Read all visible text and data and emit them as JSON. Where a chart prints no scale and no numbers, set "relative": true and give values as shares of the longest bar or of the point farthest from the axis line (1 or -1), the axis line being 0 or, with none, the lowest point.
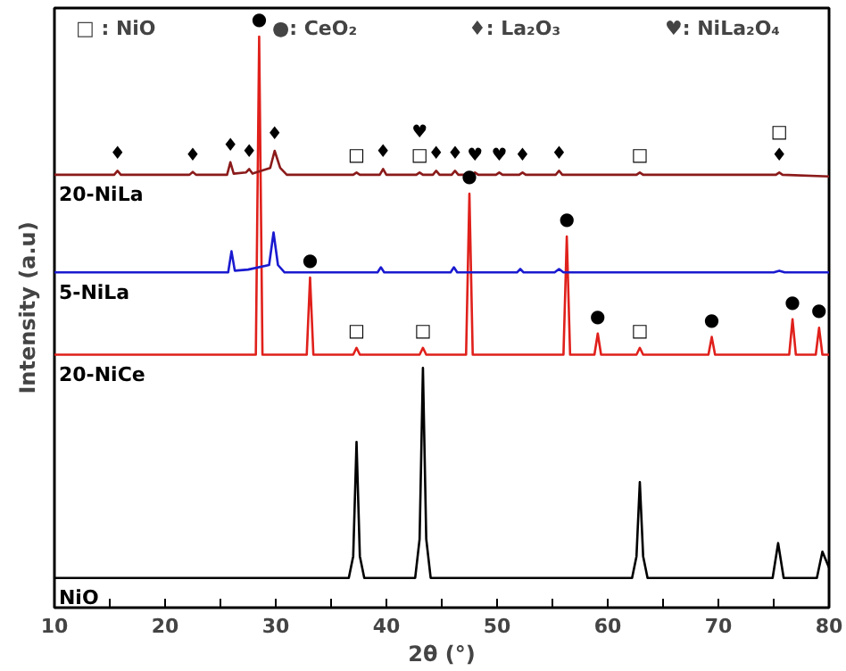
{
  "chart_data": {
    "type": "line",
    "relative": true,
    "xlabel": "2θ (°)",
    "ylabel": "Intensity (a.u)",
    "xlim": [
      10,
      80
    ],
    "xticks": [
      10,
      {
        "value": 15,
        "label": null
      },
      20,
      {
        "value": 25,
        "label": null
      },
      30,
      {
        "value": 35,
        "label": null
      },
      40,
      {
        "value": 45,
        "label": null
      },
      50,
      {
        "value": 55,
        "label": null
      },
      60,
      {
        "value": 65,
        "label": null
      },
      70,
      {
        "value": 75,
        "label": null
      },
      80
    ],
    "series": [
      {
        "name": "NiO",
        "color": "#000000",
        "x": [
          10,
          36.6,
          37.0,
          37.3,
          37.6,
          38.0,
          42.6,
          43.0,
          43.3,
          43.6,
          44.0,
          62.2,
          62.6,
          62.9,
          63.2,
          63.6,
          74.9,
          75.4,
          75.9,
          78.9,
          79.4,
          80
        ],
        "values": [
          0.052,
          0.052,
          0.09,
          0.29,
          0.09,
          0.052,
          0.052,
          0.12,
          0.42,
          0.12,
          0.052,
          0.052,
          0.09,
          0.22,
          0.09,
          0.052,
          0.052,
          0.113,
          0.052,
          0.052,
          0.098,
          0.07
        ]
      },
      {
        "name": "20-NiCe",
        "color": "#e0201b",
        "x": [
          10,
          28.2,
          28.5,
          28.8,
          32.8,
          33.1,
          33.4,
          37.0,
          37.3,
          37.6,
          43.0,
          43.3,
          43.6,
          47.2,
          47.5,
          47.8,
          56.0,
          56.3,
          56.6,
          58.8,
          59.1,
          59.4,
          62.6,
          62.9,
          63.2,
          69.1,
          69.4,
          69.7,
          76.4,
          76.7,
          77.0,
          78.8,
          79.1,
          79.4,
          80
        ],
        "values": [
          0.443,
          0.443,
          1.0,
          0.443,
          0.443,
          0.578,
          0.443,
          0.443,
          0.455,
          0.443,
          0.443,
          0.455,
          0.443,
          0.443,
          0.725,
          0.443,
          0.443,
          0.65,
          0.443,
          0.443,
          0.48,
          0.443,
          0.443,
          0.455,
          0.443,
          0.443,
          0.474,
          0.443,
          0.443,
          0.505,
          0.443,
          0.443,
          0.49,
          0.443,
          0.443
        ]
      },
      {
        "name": "5-NiLa",
        "color": "#1a1ad0",
        "x": [
          10,
          25.7,
          26.0,
          26.3,
          27.5,
          29.4,
          29.8,
          30.2,
          30.8,
          39.2,
          39.5,
          39.8,
          45.8,
          46.1,
          46.4,
          51.8,
          52.1,
          52.4,
          55.2,
          55.6,
          56.0,
          75.0,
          75.5,
          76.0,
          80
        ],
        "values": [
          0.587,
          0.587,
          0.624,
          0.59,
          0.592,
          0.6,
          0.657,
          0.6,
          0.587,
          0.587,
          0.596,
          0.587,
          0.587,
          0.596,
          0.587,
          0.587,
          0.593,
          0.587,
          0.587,
          0.593,
          0.587,
          0.587,
          0.59,
          0.587,
          0.587
        ]
      },
      {
        "name": "20-NiLa",
        "color": "#8b1a1a",
        "x": [
          10,
          15.4,
          15.7,
          16.0,
          22.2,
          22.5,
          22.8,
          25.6,
          25.9,
          26.2,
          27.3,
          27.6,
          27.9,
          29.5,
          29.9,
          30.4,
          31.0,
          37.0,
          37.3,
          37.6,
          39.4,
          39.7,
          40.0,
          42.7,
          43.0,
          43.3,
          44.2,
          44.5,
          44.8,
          45.9,
          46.2,
          46.5,
          47.7,
          48.0,
          48.3,
          49.9,
          50.2,
          50.5,
          52.0,
          52.3,
          52.6,
          55.3,
          55.6,
          55.9,
          62.6,
          62.9,
          63.2,
          75.2,
          75.5,
          75.8,
          80
        ],
        "values": [
          0.758,
          0.758,
          0.765,
          0.758,
          0.758,
          0.763,
          0.758,
          0.758,
          0.78,
          0.76,
          0.762,
          0.768,
          0.76,
          0.77,
          0.8,
          0.77,
          0.758,
          0.758,
          0.762,
          0.758,
          0.758,
          0.768,
          0.758,
          0.758,
          0.762,
          0.758,
          0.758,
          0.765,
          0.758,
          0.758,
          0.765,
          0.758,
          0.758,
          0.762,
          0.758,
          0.758,
          0.762,
          0.758,
          0.758,
          0.762,
          0.758,
          0.758,
          0.765,
          0.758,
          0.758,
          0.762,
          0.758,
          0.758,
          0.762,
          0.758,
          0.755
        ]
      }
    ],
    "annotations": [
      "□ : NiO",
      "●: CeO₂",
      "♦: La₂O₃",
      "♥: NiLa₂O₄",
      {
        "text": "♦",
        "x": 15.7,
        "y": 0.765
      },
      {
        "text": "♦",
        "x": 22.5,
        "y": 0.763
      },
      {
        "text": "♦",
        "x": 25.9,
        "y": 0.78
      },
      {
        "text": "♦",
        "x": 27.6,
        "y": 0.768
      },
      {
        "text": "♦",
        "x": 29.9,
        "y": 0.8
      },
      {
        "text": "□",
        "x": 37.3,
        "y": 0.762
      },
      {
        "text": "♦",
        "x": 39.7,
        "y": 0.768
      },
      {
        "text": "□",
        "x": 43.0,
        "y": 0.762
      },
      {
        "text": "♥",
        "x": 43.0,
        "y": 0.762
      },
      {
        "text": "♦",
        "x": 44.5,
        "y": 0.765
      },
      {
        "text": "♦",
        "x": 46.2,
        "y": 0.765
      },
      {
        "text": "♥",
        "x": 48.0,
        "y": 0.762
      },
      {
        "text": "♥",
        "x": 50.2,
        "y": 0.762
      },
      {
        "text": "♦",
        "x": 52.3,
        "y": 0.762
      },
      {
        "text": "♦",
        "x": 55.6,
        "y": 0.765
      },
      {
        "text": "□",
        "x": 62.9,
        "y": 0.762
      },
      {
        "text": "♦",
        "x": 75.5,
        "y": 0.762
      },
      {
        "text": "□",
        "x": 75.5,
        "y": 0.762
      },
      {
        "text": "●",
        "x": 28.5,
        "y": 1.0
      },
      {
        "text": "●",
        "x": 33.1,
        "y": 0.578
      },
      {
        "text": "□",
        "x": 37.3,
        "y": 0.455
      },
      {
        "text": "□",
        "x": 43.3,
        "y": 0.455
      },
      {
        "text": "●",
        "x": 47.5,
        "y": 0.725
      },
      {
        "text": "●",
        "x": 56.3,
        "y": 0.65
      },
      {
        "text": "●",
        "x": 59.1,
        "y": 0.48
      },
      {
        "text": "□",
        "x": 62.9,
        "y": 0.455
      },
      {
        "text": "●",
        "x": 69.4,
        "y": 0.474
      },
      {
        "text": "●",
        "x": 76.7,
        "y": 0.505
      },
      {
        "text": "●",
        "x": 79.1,
        "y": 0.49
      }
    ]
  }
}
